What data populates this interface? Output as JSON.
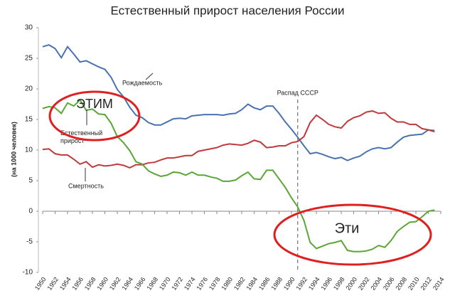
{
  "chart_data": {
    "type": "line",
    "title": "Естественный прирост населения России",
    "y_label": "(на 1000 человек)",
    "x": [
      1950,
      1951,
      1952,
      1953,
      1954,
      1955,
      1956,
      1957,
      1958,
      1959,
      1960,
      1961,
      1962,
      1963,
      1964,
      1965,
      1966,
      1967,
      1968,
      1969,
      1970,
      1971,
      1972,
      1973,
      1974,
      1975,
      1976,
      1977,
      1978,
      1979,
      1980,
      1981,
      1982,
      1983,
      1984,
      1985,
      1986,
      1987,
      1988,
      1989,
      1990,
      1991,
      1992,
      1993,
      1994,
      1995,
      1996,
      1997,
      1998,
      1999,
      2000,
      2001,
      2002,
      2003,
      2004,
      2005,
      2006,
      2007,
      2008,
      2009,
      2010,
      2011,
      2012,
      2013
    ],
    "series": [
      {
        "name": "Рождаемость",
        "color": "#4a72b0",
        "values": [
          26.9,
          27.2,
          26.6,
          25.1,
          26.9,
          25.7,
          24.4,
          24.6,
          24.1,
          23.6,
          23.2,
          21.9,
          19.9,
          18.7,
          17.0,
          15.7,
          15.3,
          14.5,
          14.1,
          14.1,
          14.6,
          15.1,
          15.2,
          15.1,
          15.6,
          15.7,
          15.8,
          15.8,
          15.8,
          15.7,
          15.9,
          16.0,
          16.6,
          17.5,
          16.9,
          16.6,
          17.2,
          17.2,
          16.0,
          14.6,
          13.4,
          12.1,
          10.7,
          9.4,
          9.6,
          9.3,
          8.9,
          8.6,
          8.8,
          8.3,
          8.7,
          9.0,
          9.7,
          10.2,
          10.4,
          10.2,
          10.4,
          11.3,
          12.1,
          12.4,
          12.5,
          12.6,
          13.3,
          13.2
        ]
      },
      {
        "name": "Смертность",
        "color": "#c0393b",
        "values": [
          10.1,
          10.2,
          9.4,
          9.2,
          9.2,
          8.5,
          7.7,
          8.1,
          7.2,
          7.6,
          7.4,
          7.5,
          7.7,
          7.5,
          7.1,
          7.6,
          7.6,
          7.9,
          8.0,
          8.4,
          8.7,
          8.7,
          8.9,
          9.1,
          9.1,
          9.8,
          10.0,
          10.2,
          10.4,
          10.8,
          11.0,
          10.9,
          10.8,
          11.1,
          11.6,
          11.3,
          10.4,
          10.5,
          10.7,
          10.7,
          11.2,
          11.4,
          12.2,
          14.5,
          15.7,
          15.0,
          14.2,
          13.8,
          13.6,
          14.7,
          15.3,
          15.6,
          16.2,
          16.4,
          16.0,
          16.1,
          15.2,
          14.6,
          14.6,
          14.2,
          14.2,
          13.5,
          13.3,
          13.0
        ]
      },
      {
        "name": "Естественный прирост",
        "color": "#5aa637",
        "values": [
          16.8,
          17.1,
          16.9,
          16.0,
          17.7,
          17.2,
          18.2,
          16.5,
          16.7,
          15.9,
          15.8,
          14.4,
          12.2,
          11.2,
          9.9,
          8.1,
          7.7,
          6.6,
          6.1,
          5.7,
          5.9,
          6.4,
          6.3,
          5.9,
          6.4,
          5.9,
          5.9,
          5.6,
          5.4,
          4.9,
          4.9,
          5.1,
          5.8,
          6.4,
          5.3,
          5.2,
          6.7,
          6.7,
          5.3,
          3.9,
          2.2,
          0.7,
          -1.5,
          -5.1,
          -6.1,
          -5.7,
          -5.3,
          -5.1,
          -4.8,
          -6.4,
          -6.6,
          -6.6,
          -6.5,
          -6.2,
          -5.6,
          -5.9,
          -4.8,
          -3.3,
          -2.5,
          -1.8,
          -1.7,
          -0.9,
          0.0,
          0.2
        ]
      }
    ],
    "xlim": [
      1950,
      2014
    ],
    "xticks": [
      1950,
      1952,
      1954,
      1956,
      1958,
      1960,
      1962,
      1964,
      1966,
      1968,
      1970,
      1972,
      1974,
      1976,
      1978,
      1980,
      1982,
      1984,
      1986,
      1988,
      1990,
      1992,
      1994,
      1996,
      1998,
      2000,
      2002,
      2004,
      2006,
      2008,
      2010,
      2012,
      2014
    ],
    "ylim": [
      -10,
      30
    ],
    "yticks": [
      -10,
      -5,
      0,
      5,
      10,
      15,
      20,
      25,
      30
    ],
    "grid": false,
    "event": {
      "text": "Распад СССР",
      "x": 1991
    },
    "highlights": [
      {
        "text": "ЭТИМ",
        "color": "#e02020"
      },
      {
        "text": "Эти",
        "color": "#e02020"
      }
    ]
  }
}
